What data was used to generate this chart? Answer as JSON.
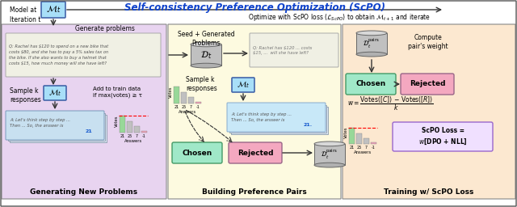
{
  "title": "Self-consistency Preference Optimization (ScPO)",
  "subtitle": "Optimize with ScPO loss ($\\mathcal{L}_{ScPO}$) to obtain $\\mathcal{M}_{t+1}$ and iterate",
  "bg_color": "#ffffff",
  "section1_bg": "#e8d4f0",
  "section2_bg": "#fdfae0",
  "section3_bg": "#fce8d0",
  "chosen_color": "#a0e8c8",
  "rejected_color": "#f4a8c0",
  "model_box_color": "#a8dff8",
  "cyl_top": "#d8d8d8",
  "cyl_mid": "#c0c0c0",
  "cyl_bot": "#b0b0b0",
  "answer_box_color": "#c8e0f0",
  "prob_box_color": "#f0f0e4",
  "scpo_box_color": "#f0e0ff",
  "title_color": "#1144cc",
  "bar_vals": [
    22,
    15,
    8,
    2
  ],
  "bar_colors": [
    "#98d898",
    "#c0c0c0",
    "#c0c0c0",
    "#f0a0b8"
  ],
  "bar_labels": [
    "21",
    "25",
    "7",
    "-1"
  ]
}
